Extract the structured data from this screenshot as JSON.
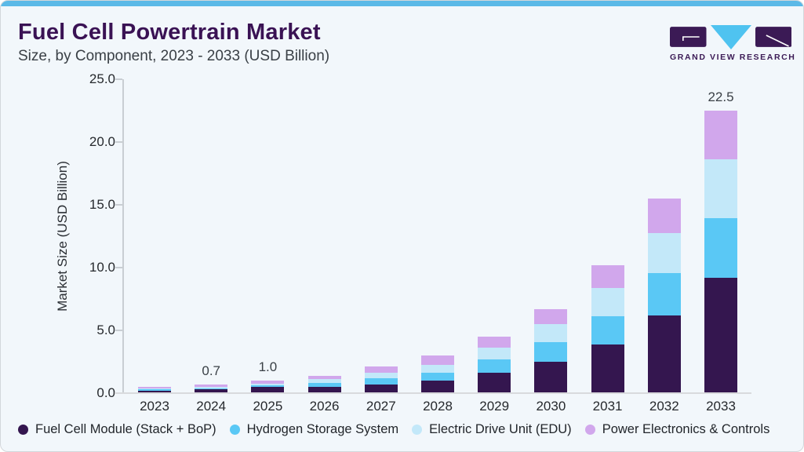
{
  "header": {
    "title": "Fuel Cell Powertrain Market",
    "subtitle": "Size, by Component, 2023 - 2033 (USD Billion)"
  },
  "logo": {
    "brand": "GRAND VIEW RESEARCH",
    "mark_dark_color": "#3b1a55",
    "mark_blue_color": "#4fc3f0"
  },
  "chart_data": {
    "type": "bar",
    "stacked": true,
    "title": "Fuel Cell Powertrain Market Size, by Component, 2023 - 2033 (USD Billion)",
    "xlabel": "",
    "ylabel": "Market Size (USD Billion)",
    "ylim": [
      0,
      25
    ],
    "yticks": [
      "0.0",
      "5.0",
      "10.0",
      "15.0",
      "20.0",
      "25.0"
    ],
    "grid": "off",
    "legend_position": "bottom",
    "categories": [
      "2023",
      "2024",
      "2025",
      "2026",
      "2027",
      "2028",
      "2029",
      "2030",
      "2031",
      "2032",
      "2033"
    ],
    "series": [
      {
        "name": "Fuel Cell Module (Stack + BoP)",
        "color": "#34164f",
        "values": [
          0.2,
          0.3,
          0.5,
          0.5,
          0.7,
          1.0,
          1.6,
          2.5,
          3.9,
          6.2,
          9.2
        ]
      },
      {
        "name": "Hydrogen Storage System",
        "color": "#5ac8f5",
        "values": [
          0.1,
          0.1,
          0.1,
          0.3,
          0.5,
          0.65,
          1.1,
          1.55,
          2.25,
          3.35,
          4.75
        ]
      },
      {
        "name": "Electric Drive Unit (EDU)",
        "color": "#c3e8f9",
        "values": [
          0.1,
          0.1,
          0.15,
          0.3,
          0.4,
          0.6,
          0.9,
          1.45,
          2.2,
          3.2,
          4.7
        ]
      },
      {
        "name": "Power Electronics & Controls",
        "color": "#d1a7ec",
        "values": [
          0.1,
          0.2,
          0.25,
          0.3,
          0.5,
          0.75,
          0.9,
          1.2,
          1.85,
          2.75,
          3.85
        ]
      }
    ],
    "totals": [
      0.5,
      0.7,
      1.0,
      1.4,
      2.1,
      3.0,
      4.5,
      6.7,
      10.2,
      15.5,
      22.5
    ],
    "bar_labels": {
      "2024": "0.7",
      "2025": "1.0",
      "2033": "22.5"
    }
  }
}
